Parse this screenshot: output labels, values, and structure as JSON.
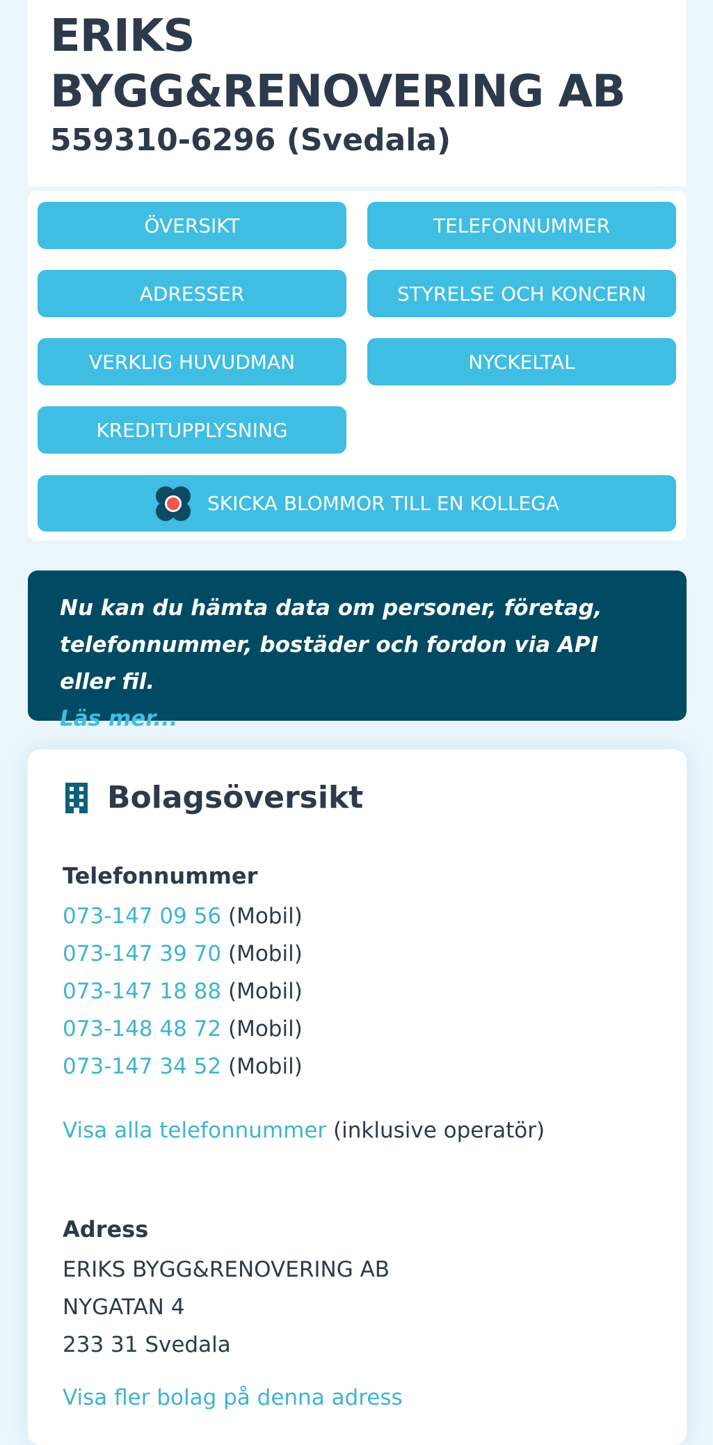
{
  "header": {
    "title": "ERIKS BYGG&RENOVERING AB",
    "org_number": "559310-6296 (Svedala)"
  },
  "nav": {
    "buttons": [
      "ÖVERSIKT",
      "TELEFONNUMMER",
      "ADRESSER",
      "STYRELSE OCH KONCERN",
      "VERKLIG HUVUDMAN",
      "NYCKELTAL",
      "KREDITUPPLYSNING"
    ],
    "flowers_button": "SKICKA BLOMMOR TILL EN KOLLEGA",
    "flowers_icon": "flower-icon"
  },
  "banner": {
    "text": "Nu kan du hämta data om personer, företag, telefonnummer, bostäder och fordon via API eller fil.",
    "link": "Läs mer..."
  },
  "overview": {
    "icon": "building-icon",
    "title": "Bolagsöversikt",
    "phones_label": "Telefonnummer",
    "phones": [
      {
        "number": "073-147 09 56",
        "type": "(Mobil)"
      },
      {
        "number": "073-147 39 70",
        "type": "(Mobil)"
      },
      {
        "number": "073-147 18 88",
        "type": "(Mobil)"
      },
      {
        "number": "073-148 48 72",
        "type": "(Mobil)"
      },
      {
        "number": "073-147 34 52",
        "type": "(Mobil)"
      }
    ],
    "show_all_phones": "Visa alla telefonnummer",
    "show_all_suffix": "(inklusive operatör)",
    "address_label": "Adress",
    "address_lines": [
      "ERIKS BYGG&RENOVERING AB",
      "NYGATAN 4",
      "233 31 Svedala"
    ],
    "more_at_address": "Visa fler bolag på denna adress"
  },
  "colors": {
    "accent": "#3fbde3",
    "banner": "#004a63",
    "text": "#2d3a4b",
    "link": "#3fb3d4"
  }
}
